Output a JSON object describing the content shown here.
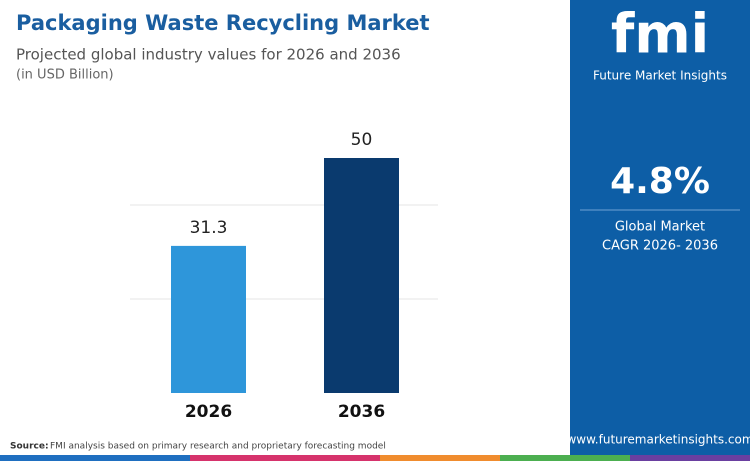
{
  "chart_data": {
    "type": "bar",
    "title": "Packaging Waste Recycling Market",
    "subtitle": "Projected global industry values for 2026 and 2036",
    "unit_note": "(in USD Billion)",
    "categories": [
      "2026",
      "2036"
    ],
    "values": [
      31.3,
      50
    ],
    "colors": [
      "#2e96da",
      "#0a3a6e"
    ],
    "ylim": [
      0,
      60
    ],
    "yticks": [
      20,
      40
    ],
    "grid": true
  },
  "sidebar": {
    "logo": "fmi",
    "brand": "Future Market Insights",
    "cagr": "4.8%",
    "cagr_label_1": "Global Market",
    "cagr_label_2": "CAGR 2026- 2036",
    "website": "www.futuremarketinsights.com"
  },
  "source": {
    "label": "Source:",
    "text": "FMI analysis based on primary research and proprietary forecasting model"
  }
}
